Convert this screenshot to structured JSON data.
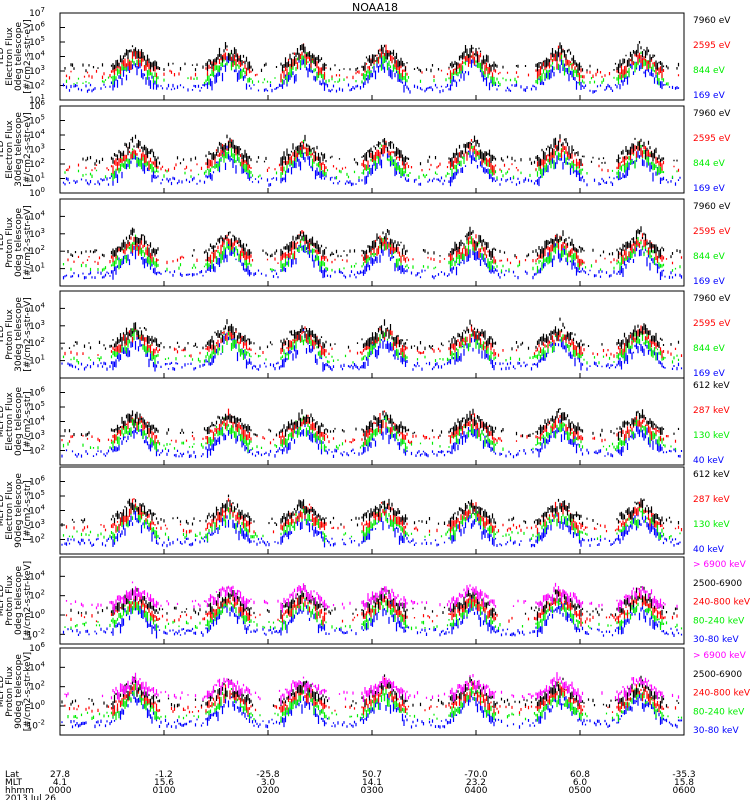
{
  "title": "NOAA18",
  "colors": {
    "black": "#000000",
    "red": "#ff0000",
    "green": "#00ee00",
    "blue": "#0000ff",
    "magenta": "#ff00ff"
  },
  "chart_data": [
    {
      "type": "scatter",
      "log_y": true,
      "ylim_exp": [
        1,
        7
      ],
      "ytick_exps": [
        1,
        2,
        3,
        4,
        5,
        6,
        7
      ],
      "ylabel": [
        "TED",
        "Electron Flux",
        "0deg telescope",
        "[#/cm2-s-str-eV]"
      ],
      "series": [
        {
          "name": "7960 eV",
          "color": "#000000"
        },
        {
          "name": "2595 eV",
          "color": "#ff0000"
        },
        {
          "name": "844 eV",
          "color": "#00ee00"
        },
        {
          "name": "169 eV",
          "color": "#0000ff"
        }
      ]
    },
    {
      "type": "scatter",
      "log_y": true,
      "ylim_exp": [
        0,
        6
      ],
      "ytick_exps": [
        0,
        1,
        2,
        3,
        4,
        5,
        6
      ],
      "ylabel": [
        "TED",
        "Electron Flux",
        "30deg telescope",
        "[#/cm2-s-str-eV]"
      ],
      "series": [
        {
          "name": "7960 eV",
          "color": "#000000"
        },
        {
          "name": "2595 eV",
          "color": "#ff0000"
        },
        {
          "name": "844 eV",
          "color": "#00ee00"
        },
        {
          "name": "169 eV",
          "color": "#0000ff"
        }
      ]
    },
    {
      "type": "scatter",
      "log_y": true,
      "ylim_exp": [
        0,
        5
      ],
      "ytick_exps": [
        1,
        2,
        3,
        4
      ],
      "ylabel": [
        "TED",
        "Proton Flux",
        "0deg telescope",
        "[#/cm2-s-str-eV]"
      ],
      "series": [
        {
          "name": "7960 eV",
          "color": "#000000"
        },
        {
          "name": "2595 eV",
          "color": "#ff0000"
        },
        {
          "name": "844 eV",
          "color": "#00ee00"
        },
        {
          "name": "169 eV",
          "color": "#0000ff"
        }
      ]
    },
    {
      "type": "scatter",
      "log_y": true,
      "ylim_exp": [
        0,
        5
      ],
      "ytick_exps": [
        1,
        2,
        3,
        4
      ],
      "ylabel": [
        "TED",
        "Proton Flux",
        "30deg telescope",
        "[#/cm2-s-str-eV]"
      ],
      "series": [
        {
          "name": "7960 eV",
          "color": "#000000"
        },
        {
          "name": "2595 eV",
          "color": "#ff0000"
        },
        {
          "name": "844 eV",
          "color": "#00ee00"
        },
        {
          "name": "169 eV",
          "color": "#0000ff"
        }
      ]
    },
    {
      "type": "scatter",
      "log_y": true,
      "ylim_exp": [
        1,
        7
      ],
      "ytick_exps": [
        2,
        3,
        4,
        5,
        6
      ],
      "ylabel": [
        "MEPED",
        "Electron Flux",
        "0deg telescope",
        "[#/cm2-s-str]"
      ],
      "series": [
        {
          "name": "612 keV",
          "color": "#000000"
        },
        {
          "name": "287 keV",
          "color": "#ff0000"
        },
        {
          "name": "130 keV",
          "color": "#00ee00"
        },
        {
          "name": "40 keV",
          "color": "#0000ff"
        }
      ]
    },
    {
      "type": "scatter",
      "log_y": true,
      "ylim_exp": [
        1,
        7
      ],
      "ytick_exps": [
        2,
        3,
        4,
        5,
        6
      ],
      "ylabel": [
        "MEPED",
        "Electron Flux",
        "90deg telescope",
        "[#/cm2-s-str]"
      ],
      "series": [
        {
          "name": "612 keV",
          "color": "#000000"
        },
        {
          "name": "287 keV",
          "color": "#ff0000"
        },
        {
          "name": "130 keV",
          "color": "#00ee00"
        },
        {
          "name": "40 keV",
          "color": "#0000ff"
        }
      ]
    },
    {
      "type": "scatter",
      "log_y": true,
      "ylim_exp": [
        -3,
        6
      ],
      "ytick_exps": [
        -2,
        0,
        2,
        4
      ],
      "ylabel": [
        "MEPED",
        "Proton Flux",
        "0deg telescope",
        "[#/cm2-s-str-keV]"
      ],
      "series": [
        {
          "name": "> 6900 keV",
          "color": "#ff00ff"
        },
        {
          "name": "2500-6900",
          "color": "#000000"
        },
        {
          "name": "240-800 keV",
          "color": "#ff0000"
        },
        {
          "name": "80-240 keV",
          "color": "#00ee00"
        },
        {
          "name": "30-80 keV",
          "color": "#0000ff"
        }
      ]
    },
    {
      "type": "scatter",
      "log_y": true,
      "ylim_exp": [
        -3,
        6
      ],
      "ytick_exps": [
        -2,
        0,
        2,
        4,
        6
      ],
      "ylabel": [
        "MEPED",
        "Proton Flux",
        "90deg telescope",
        "[#/cm2-s-str-keV]"
      ],
      "series": [
        {
          "name": "> 6900 keV",
          "color": "#ff00ff"
        },
        {
          "name": "2500-6900",
          "color": "#000000"
        },
        {
          "name": "240-800 keV",
          "color": "#ff0000"
        },
        {
          "name": "80-240 keV",
          "color": "#00ee00"
        },
        {
          "name": "30-80 keV",
          "color": "#0000ff"
        }
      ]
    }
  ],
  "x_axis": {
    "row_labels": [
      "Lat",
      "MLT",
      "hhmm"
    ],
    "date": "2013 Jul 26",
    "ticks": [
      {
        "lat": "27.8",
        "mlt": "4.1",
        "hhmm": "0000"
      },
      {
        "lat": "-1.2",
        "mlt": "15.6",
        "hhmm": "0100"
      },
      {
        "lat": "-25.8",
        "mlt": "3.0",
        "hhmm": "0200"
      },
      {
        "lat": "50.7",
        "mlt": "14.1",
        "hhmm": "0300"
      },
      {
        "lat": "-70.0",
        "mlt": "23.2",
        "hhmm": "0400"
      },
      {
        "lat": "60.8",
        "mlt": "6.0",
        "hhmm": "0500"
      },
      {
        "lat": "-35.3",
        "mlt": "15.8",
        "hhmm": "0600"
      }
    ]
  }
}
